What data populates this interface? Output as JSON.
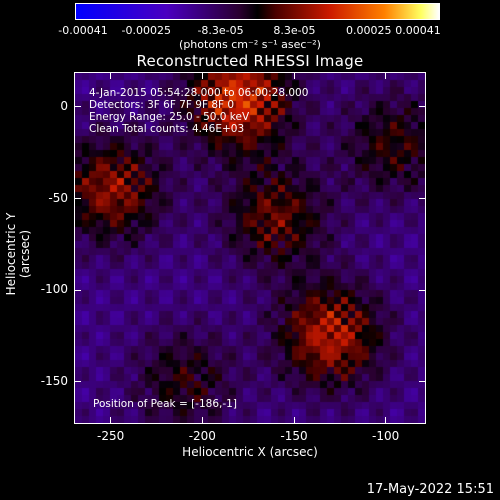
{
  "colorbar": {
    "tick_labels": [
      "-0.00041",
      "-0.00025",
      "-8.3e-05",
      "8.3e-05",
      "0.00025",
      "0.00041"
    ],
    "tick_values": [
      -0.00041,
      -0.00025,
      -8.3e-05,
      8.3e-05,
      0.00025,
      0.00041
    ],
    "units": "(photons cm⁻² s⁻¹ asec⁻²)"
  },
  "chart_data": {
    "type": "heatmap",
    "title": "Reconstructed RHESSI Image",
    "xlabel": "Heliocentric X (arcsec)",
    "ylabel": "Heliocentric Y (arcsec)",
    "xlim": [
      -270,
      -78
    ],
    "ylim": [
      -173,
      19
    ],
    "xticks": [
      -250,
      -200,
      -150,
      -100
    ],
    "yticks": [
      0,
      -50,
      -100,
      -150
    ],
    "value_range": [
      -0.00041,
      0.00041
    ],
    "peak_position": [
      -186,
      -1
    ],
    "bright_regions": [
      {
        "x": -180,
        "y": 5,
        "intensity": 0.00041
      },
      {
        "x": -250,
        "y": -45,
        "intensity": 0.0003
      },
      {
        "x": -160,
        "y": -60,
        "intensity": 0.00025
      },
      {
        "x": -130,
        "y": -125,
        "intensity": 0.00035
      },
      {
        "x": -95,
        "y": -20,
        "intensity": 0.0002
      },
      {
        "x": -210,
        "y": -150,
        "intensity": 0.00018
      }
    ]
  },
  "annotations": {
    "time_range": "4-Jan-2015 05:54:28.000 to 06:00:28.000",
    "detectors": "Detectors: 3F 6F 7F 9F 8F 0",
    "energy_range": "Energy Range: 25.0 - 50.0 keV",
    "clean_counts": "Clean    Total counts: 4.46E+03",
    "peak_text": "Position of Peak = [-186,-1]"
  },
  "footer": {
    "date": "17-May-2022 15:51"
  }
}
